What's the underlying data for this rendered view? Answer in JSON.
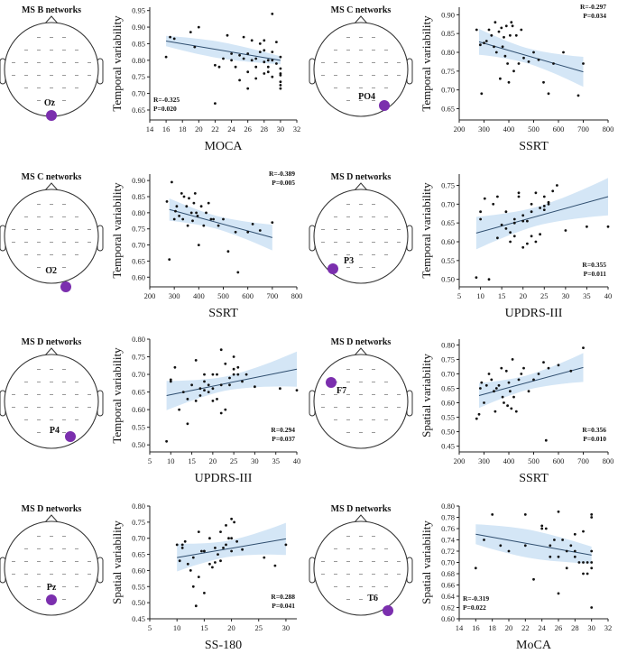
{
  "colors": {
    "ci_band": "#d4e6f6",
    "fit_line": "#2f4e6f",
    "points": "#111111",
    "electrode": "#7b2fae",
    "head_outline": "#333333"
  },
  "panels": [
    {
      "network": "MS B networks",
      "electrode": "Oz",
      "chart_data": {
        "type": "scatter",
        "xlabel": "MOCA",
        "ylabel": "Temporal variability",
        "xlim": [
          14,
          32
        ],
        "ylim": [
          0.62,
          0.96
        ],
        "xticks": [
          "14",
          "16",
          "18",
          "20",
          "22",
          "24",
          "26",
          "28",
          "30",
          "32"
        ],
        "yticks": [
          "0.65",
          "0.70",
          "0.75",
          "0.80",
          "0.85",
          "0.90",
          "0.95"
        ],
        "r": "R=-0.325",
        "p": "P=0.020",
        "stat_pos": "bottom-left",
        "fit": {
          "x": [
            16,
            30
          ],
          "y": [
            0.858,
            0.8
          ]
        },
        "ci": [
          0.025,
          0.012
        ],
        "x": [
          16,
          16.5,
          17,
          19,
          19.5,
          20,
          22,
          22,
          22.5,
          23,
          23.5,
          24,
          24,
          24.5,
          25,
          25,
          25.5,
          25.5,
          26,
          26,
          26,
          26.5,
          26.5,
          27,
          27,
          27,
          27.5,
          27.5,
          28,
          28,
          28,
          28,
          28.5,
          28.5,
          28.5,
          29,
          29,
          29,
          29,
          29.5,
          29.5,
          30,
          30,
          30,
          30,
          30,
          30,
          30
        ],
        "y": [
          0.81,
          0.87,
          0.865,
          0.885,
          0.84,
          0.9,
          0.785,
          0.67,
          0.78,
          0.805,
          0.875,
          0.8,
          0.82,
          0.78,
          0.815,
          0.74,
          0.805,
          0.87,
          0.82,
          0.715,
          0.765,
          0.8,
          0.86,
          0.745,
          0.805,
          0.78,
          0.825,
          0.85,
          0.76,
          0.795,
          0.83,
          0.86,
          0.765,
          0.78,
          0.8,
          0.825,
          0.75,
          0.8,
          0.94,
          0.855,
          0.79,
          0.775,
          0.81,
          0.76,
          0.755,
          0.735,
          0.715,
          0.725
        ]
      }
    },
    {
      "network": "MS C networks",
      "electrode": "PO4",
      "chart_data": {
        "type": "scatter",
        "xlabel": "SSRT",
        "ylabel": "Temporal variability",
        "xlim": [
          200,
          800
        ],
        "ylim": [
          0.62,
          0.92
        ],
        "xticks": [
          "200",
          "300",
          "400",
          "500",
          "600",
          "700",
          "800"
        ],
        "yticks": [
          "0.65",
          "0.70",
          "0.75",
          "0.80",
          "0.85",
          "0.90"
        ],
        "r": "R=-0.297",
        "p": "P=0.034",
        "stat_pos": "top-right",
        "fit": {
          "x": [
            280,
            700
          ],
          "y": [
            0.828,
            0.748
          ]
        },
        "ci": [
          0.02,
          0.04
        ],
        "x": [
          270,
          285,
          290,
          300,
          310,
          320,
          330,
          340,
          345,
          350,
          360,
          365,
          370,
          375,
          380,
          385,
          390,
          395,
          400,
          405,
          410,
          415,
          420,
          430,
          440,
          450,
          460,
          480,
          500,
          520,
          540,
          560,
          580,
          620,
          680,
          700
        ],
        "y": [
          0.86,
          0.82,
          0.69,
          0.825,
          0.83,
          0.86,
          0.845,
          0.815,
          0.88,
          0.8,
          0.855,
          0.73,
          0.865,
          0.815,
          0.84,
          0.79,
          0.87,
          0.77,
          0.72,
          0.845,
          0.88,
          0.87,
          0.75,
          0.845,
          0.77,
          0.86,
          0.785,
          0.775,
          0.8,
          0.78,
          0.72,
          0.69,
          0.77,
          0.8,
          0.685,
          0.77
        ]
      }
    },
    {
      "network": "MS C networks",
      "electrode": "O2",
      "chart_data": {
        "type": "scatter",
        "xlabel": "SSRT",
        "ylabel": "Temporal variability",
        "xlim": [
          200,
          800
        ],
        "ylim": [
          0.57,
          0.92
        ],
        "xticks": [
          "200",
          "300",
          "400",
          "500",
          "600",
          "700",
          "800"
        ],
        "yticks": [
          "0.60",
          "0.65",
          "0.70",
          "0.75",
          "0.80",
          "0.85",
          "0.90"
        ],
        "r": "R=-0.389",
        "p": "P=0.005",
        "stat_pos": "top-right",
        "fit": {
          "x": [
            280,
            700
          ],
          "y": [
            0.81,
            0.723
          ]
        },
        "ci": [
          0.02,
          0.04
        ],
        "x": [
          270,
          280,
          290,
          300,
          305,
          310,
          320,
          330,
          335,
          340,
          350,
          355,
          360,
          370,
          375,
          380,
          385,
          390,
          395,
          400,
          410,
          420,
          430,
          440,
          450,
          460,
          480,
          500,
          520,
          550,
          560,
          600,
          620,
          650,
          700
        ],
        "y": [
          0.835,
          0.655,
          0.895,
          0.78,
          0.805,
          0.82,
          0.79,
          0.86,
          0.78,
          0.85,
          0.82,
          0.76,
          0.845,
          0.8,
          0.775,
          0.83,
          0.86,
          0.8,
          0.79,
          0.7,
          0.82,
          0.76,
          0.8,
          0.83,
          0.78,
          0.78,
          0.76,
          0.78,
          0.68,
          0.74,
          0.615,
          0.74,
          0.765,
          0.745,
          0.77
        ]
      }
    },
    {
      "network": "MS D networks",
      "electrode": "P3",
      "chart_data": {
        "type": "scatter",
        "xlabel": "UPDRS-III",
        "ylabel": "Temporal variability",
        "xlim": [
          5,
          40
        ],
        "ylim": [
          0.48,
          0.78
        ],
        "xticks": [
          "5",
          "10",
          "15",
          "20",
          "25",
          "30",
          "35",
          "40"
        ],
        "yticks": [
          "0.50",
          "0.55",
          "0.60",
          "0.65",
          "0.70",
          "0.75"
        ],
        "r": "R=0.355",
        "p": "P=0.011",
        "stat_pos": "bottom-right",
        "fit": {
          "x": [
            9,
            40
          ],
          "y": [
            0.623,
            0.72
          ]
        },
        "ci": [
          0.025,
          0.05
        ],
        "x": [
          9,
          10,
          10,
          11,
          12,
          13,
          14,
          14,
          15,
          16,
          16,
          17,
          17,
          18,
          18,
          18,
          19,
          19,
          20,
          20,
          20,
          21,
          21,
          22,
          22,
          22,
          23,
          23,
          24,
          24,
          25,
          25,
          25,
          26,
          26,
          27,
          28,
          30,
          35,
          40
        ],
        "y": [
          0.505,
          0.66,
          0.68,
          0.715,
          0.5,
          0.7,
          0.72,
          0.61,
          0.645,
          0.635,
          0.68,
          0.6,
          0.625,
          0.66,
          0.65,
          0.615,
          0.73,
          0.72,
          0.585,
          0.655,
          0.67,
          0.655,
          0.595,
          0.7,
          0.68,
          0.615,
          0.73,
          0.6,
          0.69,
          0.62,
          0.72,
          0.695,
          0.685,
          0.705,
          0.7,
          0.735,
          0.75,
          0.63,
          0.64,
          0.64
        ]
      }
    },
    {
      "network": "MS D networks",
      "electrode": "P4",
      "chart_data": {
        "type": "scatter",
        "xlabel": "UPDRS-III",
        "ylabel": "Temporal variability",
        "xlim": [
          5,
          40
        ],
        "ylim": [
          0.48,
          0.8
        ],
        "xticks": [
          "5",
          "10",
          "15",
          "20",
          "25",
          "30",
          "35",
          "40"
        ],
        "yticks": [
          "0.50",
          "0.55",
          "0.60",
          "0.65",
          "0.70",
          "0.75",
          "0.80"
        ],
        "r": "R=0.294",
        "p": "P=0.037",
        "stat_pos": "bottom-right",
        "fit": {
          "x": [
            9,
            40
          ],
          "y": [
            0.64,
            0.715
          ]
        },
        "ci": [
          0.02,
          0.05
        ],
        "x": [
          9,
          10,
          10,
          11,
          12,
          13,
          14,
          14,
          15,
          16,
          16,
          17,
          17,
          18,
          18,
          18,
          19,
          19,
          20,
          20,
          20,
          21,
          21,
          22,
          22,
          22,
          23,
          23,
          24,
          24,
          25,
          25,
          25,
          26,
          26,
          27,
          28,
          30,
          36,
          40
        ],
        "y": [
          0.51,
          0.68,
          0.685,
          0.72,
          0.6,
          0.65,
          0.63,
          0.56,
          0.67,
          0.625,
          0.74,
          0.66,
          0.64,
          0.7,
          0.68,
          0.655,
          0.67,
          0.65,
          0.625,
          0.66,
          0.7,
          0.63,
          0.7,
          0.59,
          0.77,
          0.67,
          0.6,
          0.73,
          0.69,
          0.67,
          0.715,
          0.7,
          0.75,
          0.7,
          0.72,
          0.68,
          0.7,
          0.665,
          0.66,
          0.655
        ]
      }
    },
    {
      "network": "MS D networks",
      "electrode": "F7",
      "chart_data": {
        "type": "scatter",
        "xlabel": "SSRT",
        "ylabel": "Spatial variability",
        "xlim": [
          200,
          800
        ],
        "ylim": [
          0.43,
          0.82
        ],
        "xticks": [
          "200",
          "300",
          "400",
          "500",
          "600",
          "700",
          "800"
        ],
        "yticks": [
          "0.45",
          "0.50",
          "0.55",
          "0.60",
          "0.65",
          "0.70",
          "0.75",
          "0.80"
        ],
        "r": "R=0.356",
        "p": "P=0.010",
        "stat_pos": "bottom-right",
        "fit": {
          "x": [
            280,
            700
          ],
          "y": [
            0.625,
            0.722
          ]
        },
        "ci": [
          0.025,
          0.05
        ],
        "x": [
          270,
          280,
          285,
          290,
          300,
          310,
          320,
          330,
          340,
          345,
          350,
          360,
          370,
          375,
          380,
          390,
          395,
          400,
          405,
          410,
          415,
          420,
          430,
          440,
          450,
          460,
          480,
          500,
          520,
          540,
          550,
          560,
          600,
          650,
          700
        ],
        "y": [
          0.545,
          0.56,
          0.65,
          0.67,
          0.6,
          0.66,
          0.7,
          0.68,
          0.64,
          0.57,
          0.65,
          0.66,
          0.72,
          0.62,
          0.6,
          0.71,
          0.59,
          0.67,
          0.64,
          0.58,
          0.75,
          0.62,
          0.57,
          0.68,
          0.7,
          0.72,
          0.64,
          0.68,
          0.7,
          0.74,
          0.47,
          0.72,
          0.73,
          0.71,
          0.79
        ]
      }
    },
    {
      "network": "MS D networks",
      "electrode": "Pz",
      "chart_data": {
        "type": "scatter",
        "xlabel": "SS-180",
        "ylabel": "Spatial variability",
        "xlim": [
          5,
          32
        ],
        "ylim": [
          0.45,
          0.8
        ],
        "xticks": [
          "5",
          "10",
          "15",
          "20",
          "25",
          "30"
        ],
        "yticks": [
          "0.45",
          "0.50",
          "0.55",
          "0.60",
          "0.65",
          "0.70",
          "0.75",
          "0.80"
        ],
        "r": "R=0.288",
        "p": "P=0.041",
        "stat_pos": "bottom-right",
        "fit": {
          "x": [
            10,
            30
          ],
          "y": [
            0.64,
            0.698
          ]
        },
        "ci": [
          0.025,
          0.05
        ],
        "x": [
          10,
          10.5,
          11,
          11,
          11.5,
          12,
          12.5,
          13,
          13,
          13.5,
          14,
          14,
          14.5,
          15,
          15,
          15,
          16,
          16,
          16.5,
          17,
          17,
          17.5,
          18,
          18,
          18.5,
          19,
          19,
          19.5,
          20,
          20,
          20,
          20.5,
          21,
          22,
          26,
          28,
          30
        ],
        "y": [
          0.68,
          0.63,
          0.68,
          0.67,
          0.69,
          0.62,
          0.6,
          0.55,
          0.64,
          0.49,
          0.72,
          0.58,
          0.66,
          0.66,
          0.53,
          0.66,
          0.7,
          0.62,
          0.61,
          0.67,
          0.625,
          0.65,
          0.63,
          0.72,
          0.67,
          0.68,
          0.74,
          0.7,
          0.66,
          0.76,
          0.7,
          0.75,
          0.69,
          0.665,
          0.64,
          0.615,
          0.68
        ]
      }
    },
    {
      "network": "MS D networks",
      "electrode": "T6",
      "chart_data": {
        "type": "scatter",
        "xlabel": "MoCA",
        "ylabel": "Spatial variability",
        "xlim": [
          14,
          32
        ],
        "ylim": [
          0.6,
          0.8
        ],
        "xticks": [
          "14",
          "16",
          "18",
          "20",
          "22",
          "24",
          "26",
          "28",
          "30",
          "32"
        ],
        "yticks": [
          "0.60",
          "0.62",
          "0.64",
          "0.66",
          "0.68",
          "0.70",
          "0.72",
          "0.74",
          "0.76",
          "0.78",
          "0.80"
        ],
        "r": "R=-0.319",
        "p": "P=0.022",
        "stat_pos": "bottom-left",
        "fit": {
          "x": [
            16,
            30
          ],
          "y": [
            0.75,
            0.713
          ]
        },
        "ci": [
          0.025,
          0.015
        ],
        "x": [
          16,
          17,
          18,
          19,
          20,
          22,
          22,
          23,
          24,
          24,
          24.5,
          25,
          25,
          25.5,
          26,
          26,
          26,
          26.5,
          27,
          27,
          27.5,
          28,
          28,
          28,
          28.5,
          29,
          29,
          29,
          29.5,
          29.5,
          30,
          30,
          30,
          30,
          30,
          30
        ],
        "y": [
          0.69,
          0.74,
          0.785,
          0.73,
          0.72,
          0.785,
          0.73,
          0.67,
          0.765,
          0.76,
          0.76,
          0.73,
          0.71,
          0.74,
          0.79,
          0.71,
          0.645,
          0.74,
          0.69,
          0.72,
          0.73,
          0.75,
          0.72,
          0.71,
          0.7,
          0.755,
          0.7,
          0.68,
          0.68,
          0.7,
          0.78,
          0.785,
          0.72,
          0.7,
          0.69,
          0.62
        ]
      }
    }
  ]
}
